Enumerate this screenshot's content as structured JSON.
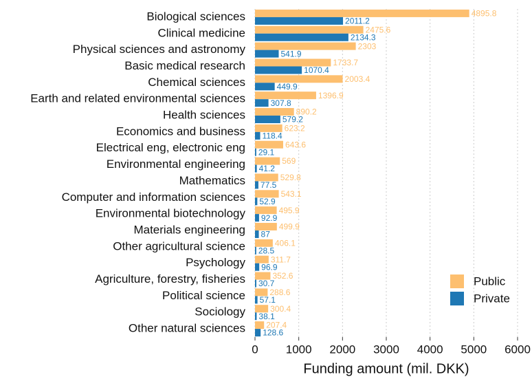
{
  "chart_data": {
    "type": "barh",
    "xlabel": "Funding amount (mil. DKK)",
    "categories": [
      "Biological sciences",
      "Clinical medicine",
      "Physical sciences and astronomy",
      "Basic medical research",
      "Chemical sciences",
      "Earth and related environmental sciences",
      "Health sciences",
      "Economics and business",
      "Electrical eng, electronic eng",
      "Environmental engineering",
      "Mathematics",
      "Computer and information sciences",
      "Environmental biotechnology",
      "Materials engineering",
      "Other agricultural science",
      "Psychology",
      "Agriculture, forestry, fisheries",
      "Political science",
      "Sociology",
      "Other natural sciences"
    ],
    "series": [
      {
        "name": "Public",
        "color": "#fdbf6f",
        "values": [
          4895.8,
          2475.6,
          2303,
          1733.7,
          2003.4,
          1396.9,
          890.2,
          623.2,
          643.6,
          569,
          529.8,
          543.1,
          495.9,
          499.9,
          406.1,
          311.7,
          352.6,
          288.6,
          300.4,
          207.4
        ]
      },
      {
        "name": "Private",
        "color": "#1f78b4",
        "values": [
          2011.2,
          2134.3,
          541.9,
          1070.4,
          449.9,
          307.8,
          579.2,
          118.4,
          29.1,
          41.2,
          77.5,
          52.9,
          92.9,
          87,
          28.5,
          96.9,
          30.7,
          57.1,
          38.1,
          128.6
        ]
      }
    ],
    "xlim": [
      0,
      6000
    ],
    "xticks": [
      0,
      1000,
      2000,
      3000,
      4000,
      5000,
      6000
    ],
    "grid": true,
    "legend": "lower right"
  }
}
